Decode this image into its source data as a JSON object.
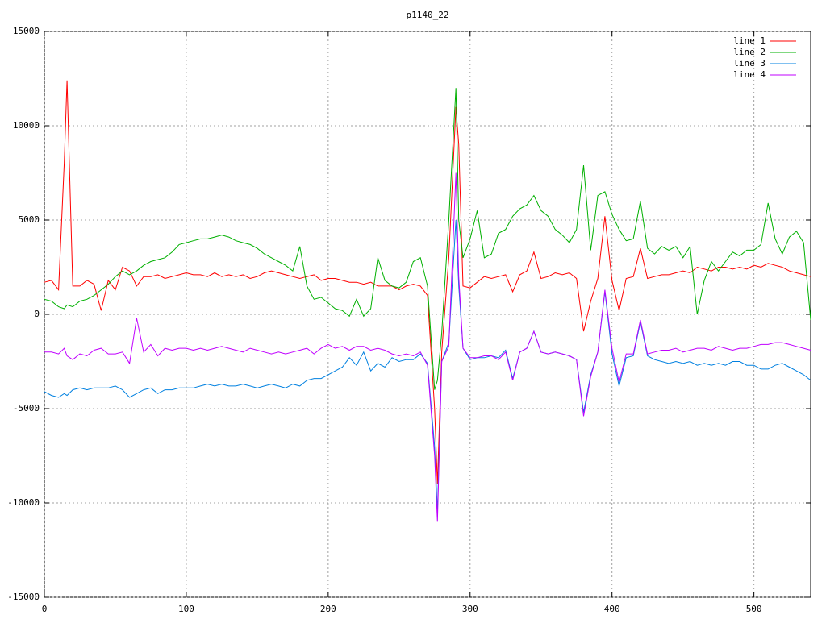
{
  "chart_data": {
    "type": "line",
    "title": "p1140_22",
    "x": [
      0,
      5,
      10,
      14,
      16,
      20,
      25,
      30,
      35,
      40,
      45,
      50,
      55,
      60,
      65,
      70,
      75,
      80,
      85,
      90,
      95,
      100,
      105,
      110,
      115,
      120,
      125,
      130,
      135,
      140,
      145,
      150,
      155,
      160,
      165,
      170,
      175,
      180,
      185,
      190,
      195,
      200,
      205,
      210,
      215,
      220,
      225,
      230,
      235,
      240,
      245,
      250,
      255,
      260,
      265,
      270,
      275,
      277,
      280,
      285,
      290,
      292,
      295,
      300,
      305,
      310,
      315,
      320,
      325,
      330,
      335,
      340,
      345,
      350,
      355,
      360,
      365,
      370,
      375,
      380,
      385,
      390,
      395,
      400,
      405,
      410,
      415,
      420,
      425,
      430,
      435,
      440,
      445,
      450,
      455,
      460,
      465,
      470,
      475,
      480,
      485,
      490,
      495,
      500,
      505,
      510,
      515,
      520,
      525,
      530,
      535,
      540
    ],
    "series": [
      {
        "name": "line 1",
        "color": "#ff0000",
        "values": [
          1700,
          1800,
          1300,
          8000,
          12400,
          1500,
          1500,
          1800,
          1600,
          200,
          1800,
          1300,
          2500,
          2300,
          1500,
          2000,
          2000,
          2100,
          1900,
          2000,
          2100,
          2200,
          2100,
          2100,
          2000,
          2200,
          2000,
          2100,
          2000,
          2100,
          1900,
          2000,
          2200,
          2300,
          2200,
          2100,
          2000,
          1900,
          2000,
          2100,
          1800,
          1900,
          1900,
          1800,
          1700,
          1700,
          1600,
          1700,
          1500,
          1500,
          1500,
          1300,
          1500,
          1600,
          1500,
          1000,
          -5000,
          -9000,
          -2000,
          3000,
          11000,
          9000,
          1500,
          1400,
          1700,
          2000,
          1900,
          2000,
          2100,
          1200,
          2100,
          2300,
          3300,
          1900,
          2000,
          2200,
          2100,
          2200,
          1900,
          -900,
          700,
          1900,
          5200,
          1800,
          200,
          1900,
          2000,
          3500,
          1900,
          2000,
          2100,
          2100,
          2200,
          2300,
          2200,
          2500,
          2400,
          2300,
          2500,
          2500,
          2400,
          2500,
          2400,
          2600,
          2500,
          2700,
          2600,
          2500,
          2300,
          2200,
          2100,
          2000
        ]
      },
      {
        "name": "line 2",
        "color": "#00b000",
        "values": [
          800,
          700,
          400,
          300,
          500,
          400,
          700,
          800,
          1000,
          1300,
          1600,
          2000,
          2300,
          2100,
          2300,
          2600,
          2800,
          2900,
          3000,
          3300,
          3700,
          3800,
          3900,
          4000,
          4000,
          4100,
          4200,
          4100,
          3900,
          3800,
          3700,
          3500,
          3200,
          3000,
          2800,
          2600,
          2300,
          3600,
          1500,
          800,
          900,
          600,
          300,
          200,
          -100,
          800,
          -100,
          300,
          3000,
          1800,
          1500,
          1400,
          1700,
          2800,
          3000,
          1500,
          -4000,
          -3500,
          -1000,
          5000,
          12000,
          5000,
          3000,
          4000,
          5500,
          3000,
          3200,
          4300,
          4500,
          5200,
          5600,
          5800,
          6300,
          5500,
          5200,
          4500,
          4200,
          3800,
          4500,
          7900,
          3400,
          6300,
          6500,
          5300,
          4500,
          3900,
          4000,
          6000,
          3500,
          3200,
          3600,
          3400,
          3600,
          3000,
          3600,
          0,
          1800,
          2800,
          2300,
          2800,
          3300,
          3100,
          3400,
          3400,
          3700,
          5900,
          4000,
          3200,
          4100,
          4400,
          3800,
          -300
        ]
      },
      {
        "name": "line 3",
        "color": "#0080e0",
        "values": [
          -4100,
          -4300,
          -4400,
          -4200,
          -4300,
          -4000,
          -3900,
          -4000,
          -3900,
          -3900,
          -3900,
          -3800,
          -4000,
          -4400,
          -4200,
          -4000,
          -3900,
          -4200,
          -4000,
          -4000,
          -3900,
          -3900,
          -3900,
          -3800,
          -3700,
          -3800,
          -3700,
          -3800,
          -3800,
          -3700,
          -3800,
          -3900,
          -3800,
          -3700,
          -3800,
          -3900,
          -3700,
          -3800,
          -3500,
          -3400,
          -3400,
          -3200,
          -3000,
          -2800,
          -2300,
          -2700,
          -2000,
          -3000,
          -2600,
          -2800,
          -2300,
          -2500,
          -2400,
          -2400,
          -2100,
          -2600,
          -7000,
          -10500,
          -2500,
          -1500,
          5000,
          1500,
          -1800,
          -2400,
          -2300,
          -2300,
          -2200,
          -2300,
          -1900,
          -3400,
          -2000,
          -1800,
          -900,
          -2000,
          -2100,
          -2000,
          -2100,
          -2200,
          -2400,
          -5200,
          -3200,
          -2000,
          1200,
          -2100,
          -3800,
          -2300,
          -2200,
          -400,
          -2200,
          -2400,
          -2500,
          -2600,
          -2500,
          -2600,
          -2500,
          -2700,
          -2600,
          -2700,
          -2600,
          -2700,
          -2500,
          -2500,
          -2700,
          -2700,
          -2900,
          -2900,
          -2700,
          -2600,
          -2800,
          -3000,
          -3200,
          -3500
        ]
      },
      {
        "name": "line 4",
        "color": "#c000ff",
        "values": [
          -2000,
          -2000,
          -2100,
          -1800,
          -2200,
          -2400,
          -2100,
          -2200,
          -1900,
          -1800,
          -2100,
          -2100,
          -2000,
          -2600,
          -200,
          -2000,
          -1600,
          -2200,
          -1800,
          -1900,
          -1800,
          -1800,
          -1900,
          -1800,
          -1900,
          -1800,
          -1700,
          -1800,
          -1900,
          -2000,
          -1800,
          -1900,
          -2000,
          -2100,
          -2000,
          -2100,
          -2000,
          -1900,
          -1800,
          -2100,
          -1800,
          -1600,
          -1800,
          -1700,
          -1900,
          -1700,
          -1700,
          -1900,
          -1800,
          -1900,
          -2100,
          -2200,
          -2100,
          -2200,
          -2000,
          -2700,
          -7500,
          -11000,
          -2500,
          -1700,
          7500,
          2000,
          -1800,
          -2300,
          -2300,
          -2200,
          -2200,
          -2400,
          -2000,
          -3500,
          -2000,
          -1800,
          -900,
          -2000,
          -2100,
          -2000,
          -2100,
          -2200,
          -2400,
          -5400,
          -3300,
          -2000,
          1300,
          -1800,
          -3600,
          -2100,
          -2100,
          -300,
          -2100,
          -2000,
          -1900,
          -1900,
          -1800,
          -2000,
          -1900,
          -1800,
          -1800,
          -1900,
          -1700,
          -1800,
          -1900,
          -1800,
          -1800,
          -1700,
          -1600,
          -1600,
          -1500,
          -1500,
          -1600,
          -1700,
          -1800,
          -1900
        ]
      }
    ],
    "xlim": [
      0,
      540
    ],
    "xticks": [
      0,
      100,
      200,
      300,
      400,
      500
    ],
    "ylim": [
      -15000,
      15000
    ],
    "yticks": [
      -15000,
      -10000,
      -5000,
      0,
      5000,
      10000,
      15000
    ],
    "grid": true,
    "legend": "upper right"
  }
}
